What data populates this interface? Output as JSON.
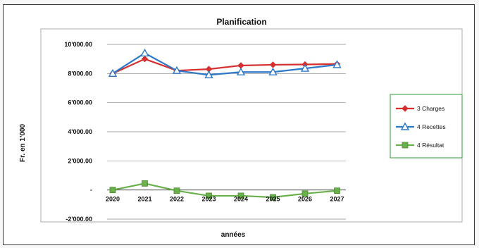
{
  "chart_data": {
    "type": "line",
    "title": "Planification",
    "xlabel": "années",
    "ylabel": "Fr. en 1'000",
    "categories": [
      "2020",
      "2021",
      "2022",
      "2023",
      "2024",
      "2025",
      "2026",
      "2027"
    ],
    "y_tick_labels": [
      "10'000.00",
      "8'000.00",
      "6'000.00",
      "4'000.00",
      "2'000.00",
      "-",
      "-2'000.00"
    ],
    "ylim": [
      -2000,
      10000
    ],
    "grid": "horizontal",
    "legend_position": "right",
    "series": [
      {
        "name": "3 Charges",
        "color": "#d62f2f",
        "marker": "diamond",
        "values": [
          8000,
          9000,
          8200,
          8300,
          8550,
          8600,
          8620,
          8650
        ]
      },
      {
        "name": "4 Recettes",
        "color": "#2e78c8",
        "marker": "triangle",
        "values": [
          8000,
          9400,
          8200,
          7900,
          8100,
          8100,
          8350,
          8600
        ]
      },
      {
        "name": "4 Résultat",
        "color": "#6ab04c",
        "marker": "square",
        "values": [
          0,
          450,
          -50,
          -400,
          -400,
          -500,
          -250,
          -50
        ]
      }
    ]
  }
}
